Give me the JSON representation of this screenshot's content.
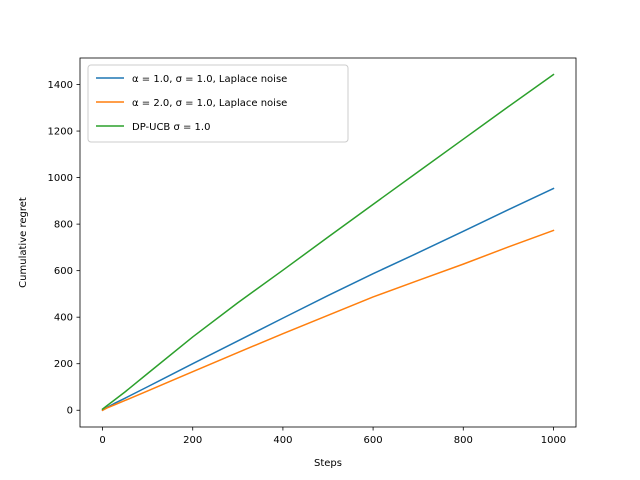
{
  "chart_data": {
    "type": "line",
    "title": "",
    "xlabel": "Steps",
    "ylabel": "Cumulative regret",
    "xlim": [
      -50,
      1050
    ],
    "ylim": [
      -72,
      1514
    ],
    "xticks": [
      0,
      200,
      400,
      600,
      800,
      1000
    ],
    "yticks": [
      0,
      200,
      400,
      600,
      800,
      1000,
      1200,
      1400
    ],
    "grid": false,
    "legend_position": "upper-left",
    "series": [
      {
        "name": "α = 1.0, σ = 1.0, Laplace noise",
        "color": "#1f77b4",
        "x": [
          0,
          10,
          25,
          50,
          100,
          200,
          300,
          400,
          500,
          600,
          700,
          800,
          900,
          1000
        ],
        "y": [
          0,
          12,
          28,
          52,
          101,
          200,
          298,
          396,
          493,
          587,
          677,
          769,
          862,
          953
        ]
      },
      {
        "name": "α = 2.0, σ = 1.0, Laplace noise",
        "color": "#ff7f0e",
        "x": [
          0,
          10,
          25,
          50,
          100,
          200,
          300,
          400,
          500,
          600,
          700,
          800,
          900,
          1000
        ],
        "y": [
          0,
          10,
          22,
          42,
          83,
          166,
          248,
          329,
          408,
          487,
          558,
          628,
          702,
          773
        ]
      },
      {
        "name": "DP-UCB σ = 1.0",
        "color": "#2ca02c",
        "x": [
          0,
          10,
          25,
          50,
          100,
          200,
          300,
          400,
          500,
          600,
          700,
          800,
          900,
          1000
        ],
        "y": [
          5,
          20,
          42,
          79,
          158,
          315,
          462,
          602,
          744,
          885,
          1025,
          1165,
          1305,
          1443
        ]
      }
    ]
  }
}
